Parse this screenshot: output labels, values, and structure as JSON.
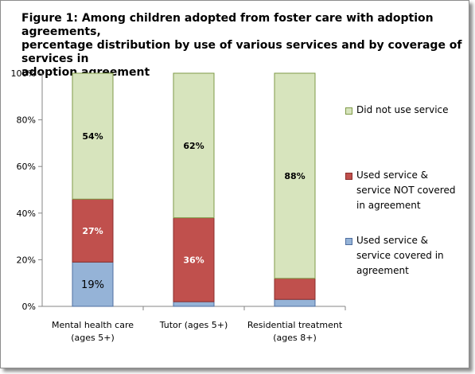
{
  "title": "Figure 1: Among children adopted from foster care with adoption agreements,\npercentage distribution by use of various services and by coverage of services in\nadoption agreement",
  "chart_data": {
    "type": "bar",
    "stacked": true,
    "categories": [
      "Mental health care\n(ages 5+)",
      "Tutor (ages 5+)",
      "Residential treatment\n(ages 8+)"
    ],
    "series": [
      {
        "name": "Used service &\nservice covered in\nagreement",
        "color": "#95b3d7",
        "stroke": "#4f6fa0",
        "values": [
          19,
          2,
          3
        ],
        "labels": [
          "19%",
          "",
          ""
        ]
      },
      {
        "name": "Used service &\nservice NOT covered\nin agreement",
        "color": "#c0504d",
        "stroke": "#8b2e2b",
        "values": [
          27,
          36,
          9
        ],
        "labels": [
          "27%",
          "36%",
          ""
        ]
      },
      {
        "name": "Did not use service",
        "color": "#d7e4bd",
        "stroke": "#7f9a48",
        "values": [
          54,
          62,
          88
        ],
        "labels": [
          "54%",
          "62%",
          "88%"
        ]
      }
    ],
    "legend_order": [
      2,
      1,
      0
    ],
    "y_ticks": [
      "0%",
      "20%",
      "40%",
      "60%",
      "80%",
      "100%"
    ],
    "ylim": [
      0,
      100
    ],
    "legend_position": "right"
  }
}
